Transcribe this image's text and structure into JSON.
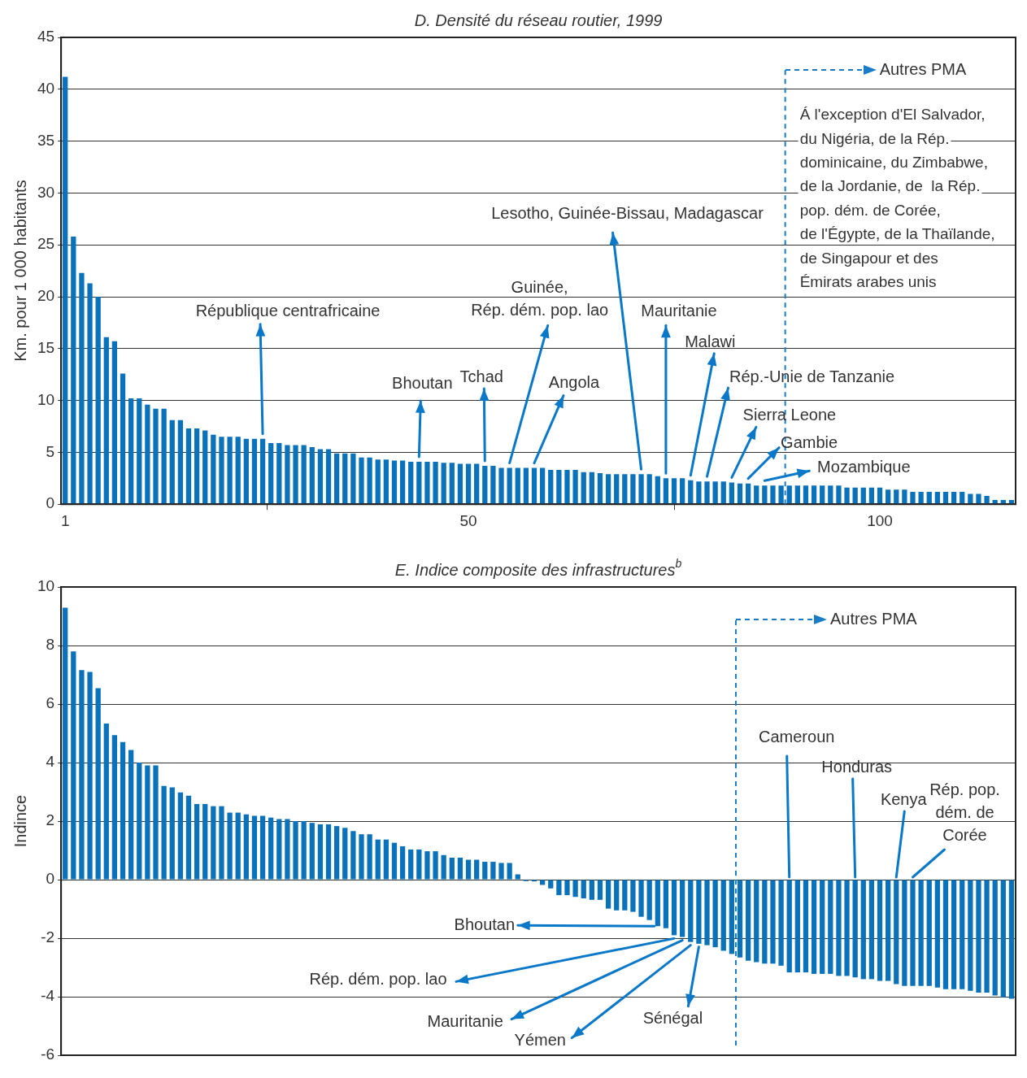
{
  "chart_data": [
    {
      "type": "bar",
      "title": "D. Densité du réseau routier, 1999",
      "ylabel": "Km. pour 1 000 habitants",
      "x": [
        1,
        2,
        3,
        4,
        5,
        6,
        7,
        8,
        9,
        10,
        11,
        12,
        13,
        14,
        15,
        16,
        17,
        18,
        19,
        20,
        21,
        22,
        23,
        24,
        25,
        26,
        27,
        28,
        29,
        30,
        31,
        32,
        33,
        34,
        35,
        36,
        37,
        38,
        39,
        40,
        41,
        42,
        43,
        44,
        45,
        46,
        47,
        48,
        49,
        50,
        51,
        52,
        53,
        54,
        55,
        56,
        57,
        58,
        59,
        60,
        61,
        62,
        63,
        64,
        65,
        66,
        67,
        68,
        69,
        70,
        71,
        72,
        73,
        74,
        75,
        76,
        77,
        78,
        79,
        80,
        81,
        82,
        83,
        84,
        85,
        86,
        87,
        88,
        89,
        90,
        91,
        92,
        93,
        94,
        95,
        96,
        97,
        98,
        99,
        100,
        101,
        102,
        103,
        104,
        105,
        106,
        107,
        108,
        109,
        110,
        111,
        112,
        113,
        114,
        115,
        116
      ],
      "values": [
        41.2,
        25.8,
        22.3,
        21.3,
        20.0,
        16.1,
        15.7,
        12.6,
        10.2,
        10.2,
        9.6,
        9.2,
        9.2,
        8.1,
        8.1,
        7.3,
        7.3,
        7.1,
        6.7,
        6.5,
        6.5,
        6.5,
        6.3,
        6.3,
        6.3,
        5.9,
        5.9,
        5.7,
        5.7,
        5.7,
        5.5,
        5.3,
        5.3,
        4.9,
        4.9,
        4.9,
        4.5,
        4.5,
        4.3,
        4.3,
        4.2,
        4.2,
        4.1,
        4.1,
        4.1,
        4.1,
        4.0,
        4.0,
        3.9,
        3.9,
        3.9,
        3.7,
        3.7,
        3.5,
        3.5,
        3.5,
        3.5,
        3.5,
        3.5,
        3.3,
        3.3,
        3.3,
        3.3,
        3.1,
        3.1,
        3.0,
        2.9,
        2.9,
        2.9,
        2.9,
        2.9,
        2.9,
        2.7,
        2.5,
        2.5,
        2.5,
        2.3,
        2.2,
        2.2,
        2.2,
        2.2,
        2.1,
        2.0,
        2.0,
        1.8,
        1.8,
        1.8,
        1.8,
        1.8,
        1.8,
        1.8,
        1.8,
        1.8,
        1.8,
        1.8,
        1.6,
        1.6,
        1.6,
        1.6,
        1.6,
        1.4,
        1.4,
        1.4,
        1.2,
        1.2,
        1.2,
        1.2,
        1.2,
        1.2,
        1.2,
        1.0,
        1.0,
        0.8,
        0.4,
        0.4,
        0.4
      ],
      "color": "#0a72ba",
      "xlim": [
        0.5,
        116.5
      ],
      "xticks": [
        1,
        50,
        100
      ],
      "ylim": [
        0,
        45
      ],
      "yticks": [
        0,
        5,
        10,
        15,
        20,
        25,
        30,
        35,
        40,
        45
      ],
      "grid": "y",
      "ref_lines": [
        {
          "axis": "x",
          "value": 88.5,
          "label": "Autres PMA",
          "color": "#1a7cc8",
          "line_style": "dashed"
        }
      ],
      "annotations": [
        {
          "text": "République centrafricaine",
          "x": 25,
          "y": 6.3
        },
        {
          "text": "Bhoutan",
          "x": 44,
          "y": 4.1
        },
        {
          "text": "Tchad",
          "x": 52,
          "y": 3.7
        },
        {
          "text": "Guinée,\nRép. dém. pop. lao",
          "x": 55,
          "y": 3.5
        },
        {
          "text": "Angola",
          "x": 58,
          "y": 3.5
        },
        {
          "text": "Lesotho, Guinée-Bissau, Madagascar",
          "x": 71,
          "y": 2.9
        },
        {
          "text": "Mauritanie",
          "x": 74,
          "y": 2.5
        },
        {
          "text": "Malawi",
          "x": 77,
          "y": 2.3
        },
        {
          "text": "Rép.-Unie de Tanzanie",
          "x": 79,
          "y": 2.2
        },
        {
          "text": "Sierra Leone",
          "x": 82,
          "y": 2.1
        },
        {
          "text": "Gambie",
          "x": 84,
          "y": 2.0
        },
        {
          "text": "Mozambique",
          "x": 86,
          "y": 1.8
        },
        "Á l'exception d'El Salvador,\ndu Nigéria, de la Rép.\ndominicaine, du Zimbabwe,\nde la Jordanie, de  la Rép.\npop. dém. de Corée,\nde l'Égypte, de la Thaïlande,\nde Singapour et des\nÉmirats arabes unis"
      ]
    },
    {
      "type": "bar",
      "title": "E. Indice composite des infrastructures$^{b}$",
      "ylabel": "Indince",
      "x": [
        1,
        2,
        3,
        4,
        5,
        6,
        7,
        8,
        9,
        10,
        11,
        12,
        13,
        14,
        15,
        16,
        17,
        18,
        19,
        20,
        21,
        22,
        23,
        24,
        25,
        26,
        27,
        28,
        29,
        30,
        31,
        32,
        33,
        34,
        35,
        36,
        37,
        38,
        39,
        40,
        41,
        42,
        43,
        44,
        45,
        46,
        47,
        48,
        49,
        50,
        51,
        52,
        53,
        54,
        55,
        56,
        57,
        58,
        59,
        60,
        61,
        62,
        63,
        64,
        65,
        66,
        67,
        68,
        69,
        70,
        71,
        72,
        73,
        74,
        75,
        76,
        77,
        78,
        79,
        80,
        81,
        82,
        83,
        84,
        85,
        86,
        87,
        88,
        89,
        90,
        91,
        92,
        93,
        94,
        95,
        96,
        97,
        98,
        99,
        100,
        101,
        102,
        103,
        104,
        105,
        106,
        107,
        108,
        109,
        110,
        111,
        112,
        113,
        114,
        115,
        116
      ],
      "values": [
        9.29,
        7.8,
        7.16,
        7.1,
        6.54,
        5.33,
        4.94,
        4.7,
        4.43,
        4.0,
        3.9,
        3.9,
        3.2,
        3.15,
        2.98,
        2.87,
        2.58,
        2.58,
        2.51,
        2.51,
        2.29,
        2.29,
        2.23,
        2.18,
        2.18,
        2.12,
        2.07,
        2.07,
        2.0,
        2.0,
        1.94,
        1.89,
        1.89,
        1.83,
        1.77,
        1.66,
        1.55,
        1.55,
        1.37,
        1.37,
        1.26,
        1.14,
        1.03,
        1.03,
        0.97,
        0.97,
        0.84,
        0.75,
        0.75,
        0.68,
        0.68,
        0.61,
        0.61,
        0.57,
        0.57,
        0.18,
        -0.05,
        -0.06,
        -0.18,
        -0.3,
        -0.53,
        -0.53,
        -0.59,
        -0.64,
        -0.69,
        -0.69,
        -0.99,
        -1.05,
        -1.05,
        -1.1,
        -1.27,
        -1.38,
        -1.59,
        -1.66,
        -1.9,
        -1.96,
        -2.13,
        -2.19,
        -2.24,
        -2.31,
        -2.43,
        -2.54,
        -2.66,
        -2.77,
        -2.82,
        -2.87,
        -2.87,
        -2.94,
        -3.17,
        -3.17,
        -3.17,
        -3.22,
        -3.22,
        -3.22,
        -3.29,
        -3.29,
        -3.34,
        -3.4,
        -3.4,
        -3.46,
        -3.46,
        -3.57,
        -3.63,
        -3.63,
        -3.63,
        -3.63,
        -3.69,
        -3.74,
        -3.74,
        -3.74,
        -3.8,
        -3.86,
        -3.86,
        -3.96,
        -4.02,
        -4.07
      ],
      "color": "#0a72ba",
      "xlim": [
        0.5,
        116.5
      ],
      "ylim": [
        -6,
        10
      ],
      "yticks": [
        -6,
        -4,
        -2,
        0,
        2,
        4,
        6,
        8,
        10
      ],
      "grid": "y",
      "tick_labels": "y",
      "ref_lines": [
        {
          "axis": "x",
          "value": 82.5,
          "label": "Autres PMA",
          "color": "#1a7cc8",
          "line_style": "dashed"
        }
      ],
      "annotations": [
        {
          "text": "Bhoutan",
          "x": 73,
          "y": -1.59
        },
        {
          "text": "Rép. dém. pop. lao",
          "x": 75,
          "y": -1.9
        },
        {
          "text": "Mauritanie",
          "x": 76,
          "y": -1.96
        },
        {
          "text": "Yémen",
          "x": 77,
          "y": -2.13
        },
        {
          "text": "Sénégal",
          "x": 78,
          "y": -2.19
        },
        {
          "text": "Cameroun",
          "x": 89,
          "y": 0
        },
        {
          "text": "Honduras",
          "x": 97,
          "y": 0
        },
        {
          "text": "Kenya",
          "x": 102,
          "y": 0
        },
        {
          "text": "Rép. pop.\ndém. de\nCorée",
          "x": 104,
          "y": 0
        }
      ]
    }
  ]
}
